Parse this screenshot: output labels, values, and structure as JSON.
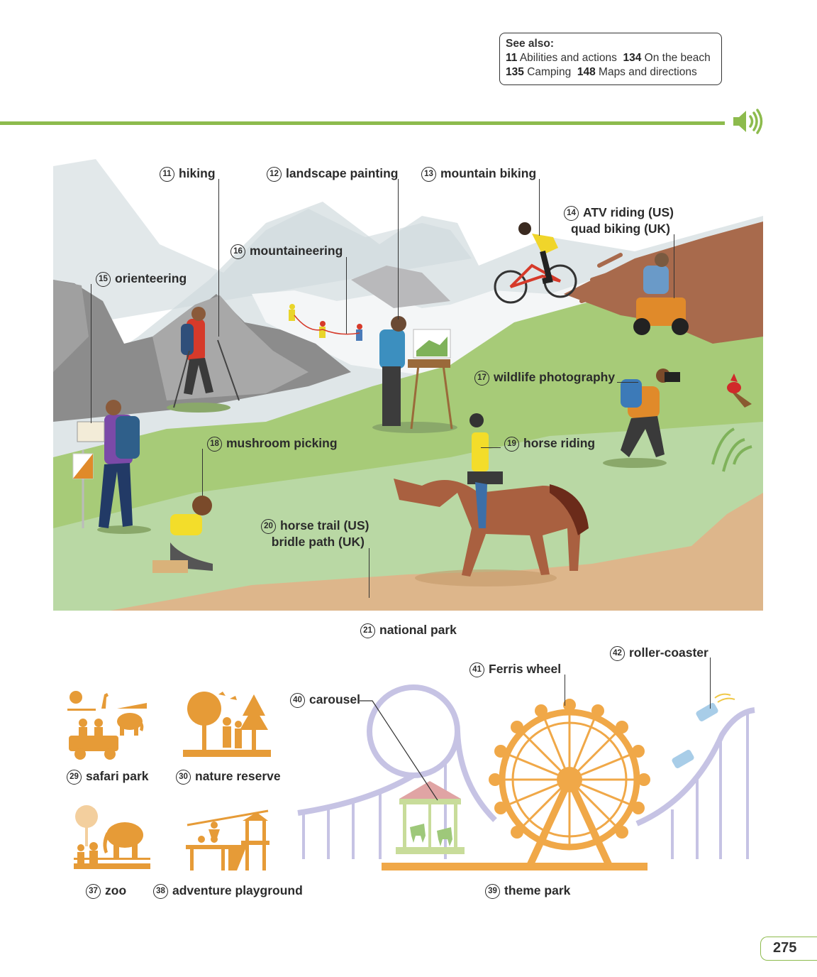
{
  "see_also": {
    "title": "See also:",
    "refs": [
      {
        "num": "11",
        "text": "Abilities and actions"
      },
      {
        "num": "134",
        "text": "On the beach"
      },
      {
        "num": "135",
        "text": "Camping"
      },
      {
        "num": "148",
        "text": "Maps and directions"
      }
    ]
  },
  "scene_labels": {
    "hiking": {
      "num": "11",
      "text": "hiking"
    },
    "landscape_painting": {
      "num": "12",
      "text": "landscape painting"
    },
    "mountain_biking": {
      "num": "13",
      "text": "mountain biking"
    },
    "atv_riding": {
      "num": "14",
      "text": "ATV riding (US)",
      "text2": "quad biking (UK)"
    },
    "orienteering": {
      "num": "15",
      "text": "orienteering"
    },
    "mountaineering": {
      "num": "16",
      "text": "mountaineering"
    },
    "wildlife_photography": {
      "num": "17",
      "text": "wildlife photography"
    },
    "mushroom_picking": {
      "num": "18",
      "text": "mushroom picking"
    },
    "horse_riding": {
      "num": "19",
      "text": "horse riding"
    },
    "horse_trail": {
      "num": "20",
      "text": "horse trail (US)",
      "text2": "bridle path (UK)"
    },
    "national_park": {
      "num": "21",
      "text": "national park"
    }
  },
  "park_icons": {
    "safari_park": {
      "num": "29",
      "text": "safari park"
    },
    "nature_reserve": {
      "num": "30",
      "text": "nature reserve"
    },
    "zoo": {
      "num": "37",
      "text": "zoo"
    },
    "adventure_playground": {
      "num": "38",
      "text": "adventure playground"
    }
  },
  "theme_park": {
    "theme_park": {
      "num": "39",
      "text": "theme park"
    },
    "carousel": {
      "num": "40",
      "text": "carousel"
    },
    "ferris_wheel": {
      "num": "41",
      "text": "Ferris wheel"
    },
    "roller_coaster": {
      "num": "42",
      "text": "roller-coaster"
    }
  },
  "page_number": "275",
  "colors": {
    "accent_green": "#8dbb4d",
    "icon_orange": "#e69b37",
    "coaster_lavender": "#c6c3e4",
    "ferris_orange": "#f0a848"
  }
}
